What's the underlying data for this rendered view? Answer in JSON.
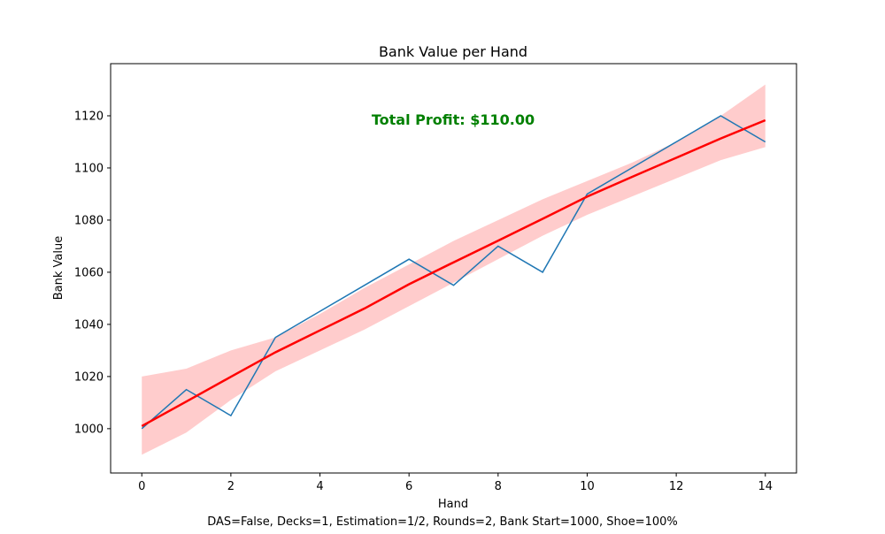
{
  "chart_data": {
    "type": "line",
    "title": "Bank Value per Hand",
    "xlabel": "Hand",
    "ylabel": "Bank Value",
    "footnote": "DAS=False, Decks=1, Estimation=1/2, Rounds=2, Bank Start=1000, Shoe=100%",
    "annotation": "Total Profit: $110.00",
    "annotation_color": "#008000",
    "xlim": [
      -0.7,
      14.7
    ],
    "ylim": [
      983,
      1140
    ],
    "xticks": [
      0,
      2,
      4,
      6,
      8,
      10,
      12,
      14
    ],
    "yticks": [
      1000,
      1020,
      1040,
      1060,
      1080,
      1100,
      1120
    ],
    "grid": false,
    "series": [
      {
        "color": "#1f77b4",
        "x": [
          0,
          1,
          2,
          3,
          4,
          5,
          6,
          7,
          8,
          9,
          10,
          11,
          12,
          13,
          14
        ],
        "y": [
          1000,
          1015,
          1005,
          1035,
          1045,
          1055,
          1065,
          1055,
          1070,
          1060,
          1090,
          1100,
          1110,
          1120,
          1110
        ]
      }
    ],
    "trend": {
      "color": "#ff0000",
      "band_color": "#ffcccc",
      "x": [
        0,
        1,
        2,
        3,
        4,
        5,
        6,
        7,
        8,
        9,
        10,
        11,
        12,
        13,
        14
      ],
      "y": [
        1001,
        1010.4,
        1019.9,
        1029.3,
        1037.7,
        1046.1,
        1055.4,
        1063.8,
        1072.1,
        1080.5,
        1089,
        1096.5,
        1103.9,
        1111.3,
        1118.3
      ],
      "lower": [
        990,
        998.5,
        1011,
        1022,
        1030,
        1038,
        1047,
        1056,
        1065,
        1074,
        1082,
        1089,
        1096,
        1103,
        1108
      ],
      "upper": [
        1020,
        1023,
        1030,
        1035,
        1044,
        1054,
        1063,
        1072,
        1080,
        1088,
        1095,
        1102,
        1110,
        1120,
        1132
      ]
    }
  }
}
